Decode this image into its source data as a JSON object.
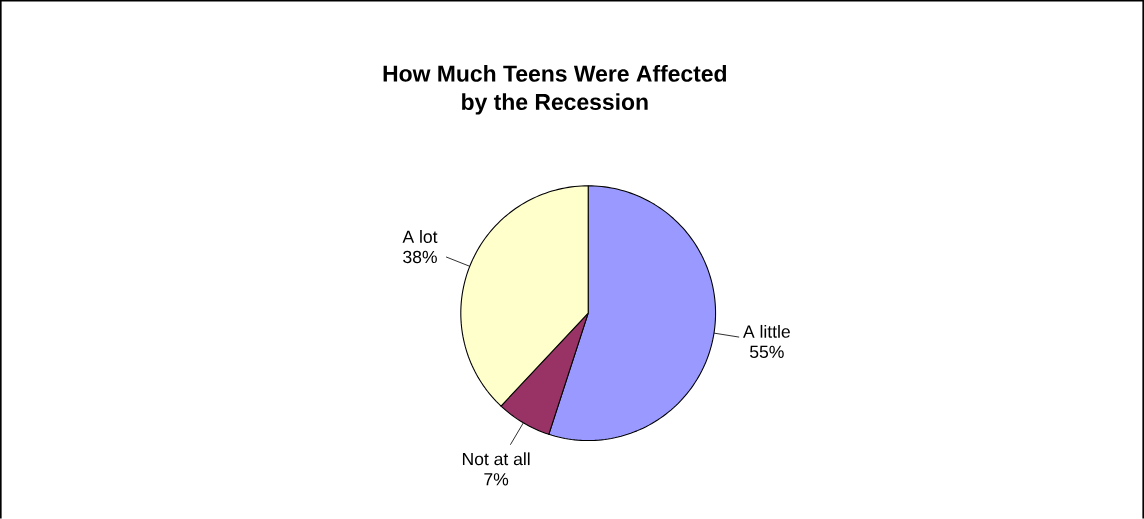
{
  "chart_data": {
    "type": "pie",
    "title": "How Much Teens Were Affected\nby the Recession",
    "categories": [
      "A little",
      "Not at all",
      "A lot"
    ],
    "values": [
      55,
      7,
      38
    ],
    "value_labels": [
      "55%",
      "7%",
      "38%"
    ],
    "colors": [
      "#9999ff",
      "#993366",
      "#ffffcc"
    ]
  }
}
